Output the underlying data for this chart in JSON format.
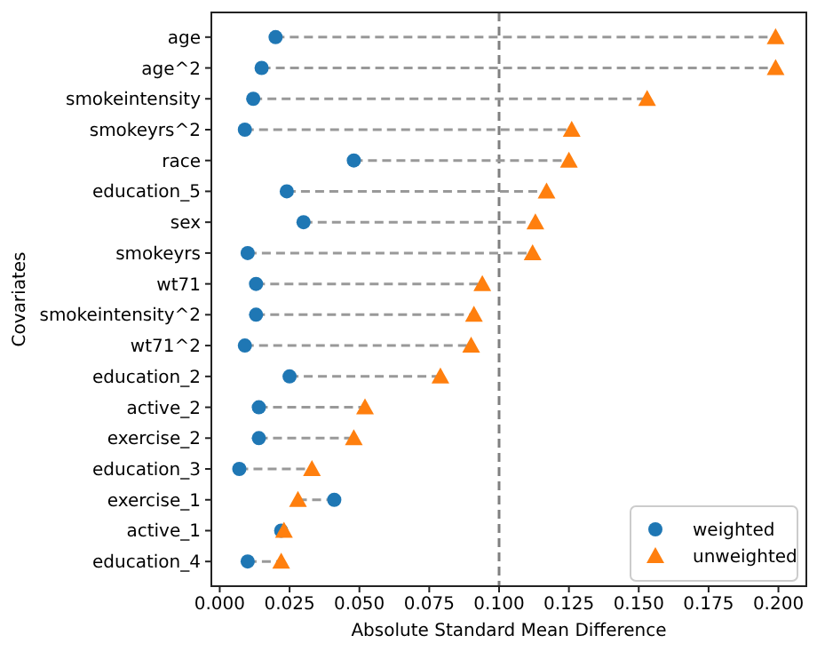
{
  "chart_data": {
    "type": "scatter",
    "orientation": "horizontal",
    "xlabel": "Absolute Standard Mean Difference",
    "ylabel": "Covariates",
    "categories": [
      "age",
      "age^2",
      "smokeintensity",
      "smokeyrs^2",
      "race",
      "education_5",
      "sex",
      "smokeyrs",
      "wt71",
      "smokeintensity^2",
      "wt71^2",
      "education_2",
      "active_2",
      "exercise_2",
      "education_3",
      "exercise_1",
      "active_1",
      "education_4"
    ],
    "series": [
      {
        "name": "weighted",
        "color": "#1f77b4",
        "marker": "circle",
        "values": [
          0.02,
          0.015,
          0.012,
          0.009,
          0.048,
          0.024,
          0.03,
          0.01,
          0.013,
          0.013,
          0.009,
          0.025,
          0.014,
          0.014,
          0.007,
          0.041,
          0.022,
          0.01
        ]
      },
      {
        "name": "unweighted",
        "color": "#ff7f0e",
        "marker": "triangle",
        "values": [
          0.199,
          0.199,
          0.153,
          0.126,
          0.125,
          0.117,
          0.113,
          0.112,
          0.094,
          0.091,
          0.09,
          0.079,
          0.052,
          0.048,
          0.033,
          0.028,
          0.023,
          0.022
        ]
      }
    ],
    "line_style": "dashed",
    "xlim": [
      -0.003,
      0.21
    ],
    "xticks": [
      {
        "value": 0,
        "label": "0.000"
      },
      0.025,
      {
        "value": 0.05,
        "label": "0.050"
      },
      0.075,
      {
        "value": 0.1,
        "label": "0.100"
      },
      0.125,
      {
        "value": 0.15,
        "label": "0.150"
      },
      0.175,
      {
        "value": 0.2,
        "label": "0.200"
      }
    ],
    "ref_lines": [
      {
        "axis": "x",
        "value": 0.1,
        "label": null,
        "color": "#808080",
        "line_style": "dashed"
      }
    ],
    "legend": "bottom right"
  }
}
